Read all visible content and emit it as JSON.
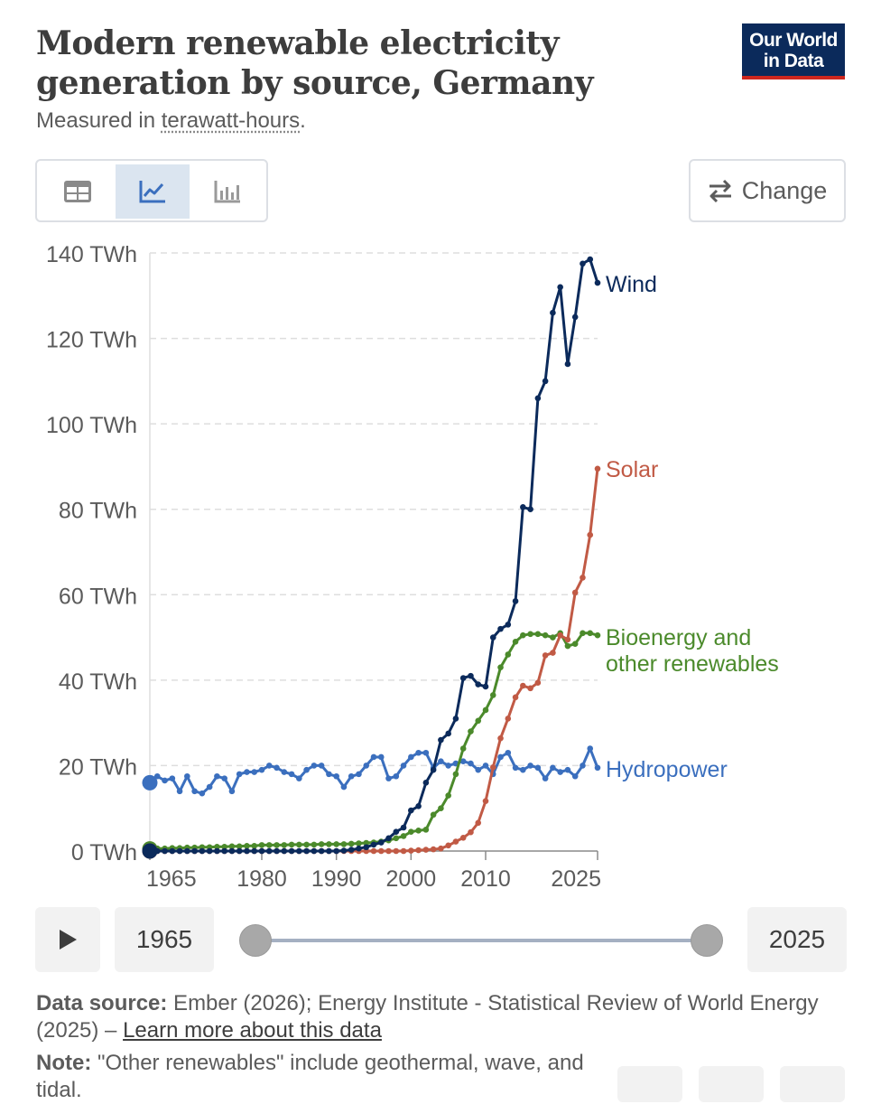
{
  "header": {
    "title": "Modern renewable electricity generation by source, Germany",
    "subtitle_prefix": "Measured in ",
    "subtitle_term": "terawatt-hours",
    "subtitle_suffix": ".",
    "logo_line1": "Our World",
    "logo_line2": "in Data"
  },
  "tabs": [
    {
      "name": "table",
      "icon": "table-icon",
      "active": false
    },
    {
      "name": "chart",
      "icon": "line-chart-icon",
      "active": true
    },
    {
      "name": "map-bars",
      "icon": "bar-chart-icon",
      "active": false
    }
  ],
  "change_label": "Change",
  "timeline": {
    "start_year": "1965",
    "end_year": "2025"
  },
  "footer": {
    "source_label": "Data source:",
    "source_text": " Ember (2026); Energy Institute - Statistical Review of World Energy (2025) – ",
    "source_link": "Learn more about this data",
    "note_label": "Note:",
    "note_text": " \"Other renewables\" include geothermal, wave, and tidal."
  },
  "chart_data": {
    "type": "line",
    "title": "Modern renewable electricity generation by source, Germany",
    "ylabel": "TWh",
    "ylim": [
      0,
      140
    ],
    "y_ticks": [
      0,
      20,
      40,
      60,
      80,
      100,
      120,
      140
    ],
    "y_tick_labels": [
      "0 TWh",
      "20 TWh",
      "40 TWh",
      "60 TWh",
      "80 TWh",
      "100 TWh",
      "120 TWh",
      "140 TWh"
    ],
    "xlim": [
      1965,
      2025
    ],
    "x_ticks": [
      1965,
      1980,
      1990,
      2000,
      2010,
      2025
    ],
    "x_tick_labels": [
      "1965",
      "1980",
      "1990",
      "2000",
      "2010",
      "2025"
    ],
    "x": [
      1965,
      1966,
      1967,
      1968,
      1969,
      1970,
      1971,
      1972,
      1973,
      1974,
      1975,
      1976,
      1977,
      1978,
      1979,
      1980,
      1981,
      1982,
      1983,
      1984,
      1985,
      1986,
      1987,
      1988,
      1989,
      1990,
      1991,
      1992,
      1993,
      1994,
      1995,
      1996,
      1997,
      1998,
      1999,
      2000,
      2001,
      2002,
      2003,
      2004,
      2005,
      2006,
      2007,
      2008,
      2009,
      2010,
      2011,
      2012,
      2013,
      2014,
      2015,
      2016,
      2017,
      2018,
      2019,
      2020,
      2021,
      2022,
      2023,
      2024,
      2025
    ],
    "series": [
      {
        "name": "Wind",
        "label": "Wind",
        "color": "#0b2a5b",
        "values": [
          0,
          0,
          0,
          0,
          0,
          0,
          0,
          0,
          0,
          0,
          0,
          0,
          0,
          0,
          0,
          0,
          0,
          0,
          0,
          0,
          0,
          0,
          0,
          0,
          0,
          0,
          0.1,
          0.3,
          0.6,
          0.9,
          1.5,
          2.0,
          3.0,
          4.5,
          5.5,
          9.5,
          10.5,
          16,
          19,
          26,
          27.5,
          31,
          40.5,
          41,
          39,
          38.5,
          50,
          52,
          53,
          58.5,
          80.5,
          80,
          106,
          110,
          126,
          132,
          114,
          125,
          137.5,
          138.5,
          133
        ]
      },
      {
        "name": "Solar",
        "label": "Solar",
        "color": "#c15a45",
        "values": [
          0,
          0,
          0,
          0,
          0,
          0,
          0,
          0,
          0,
          0,
          0,
          0,
          0,
          0,
          0,
          0,
          0,
          0,
          0,
          0,
          0,
          0,
          0,
          0,
          0,
          0,
          0,
          0,
          0,
          0,
          0,
          0,
          0,
          0,
          0,
          0.1,
          0.2,
          0.3,
          0.4,
          0.6,
          1.3,
          2.2,
          3.1,
          4.4,
          6.6,
          11.7,
          19.6,
          26.4,
          31,
          36,
          38.7,
          38.1,
          39.4,
          45.8,
          46.4,
          50.5,
          49.5,
          60.5,
          64,
          74,
          89.5
        ]
      },
      {
        "name": "Bioenergy and other renewables",
        "label_line1": "Bioenergy and",
        "label_line2": "other renewables",
        "color": "#4b8a2b",
        "values": [
          0.5,
          0.6,
          0.6,
          0.7,
          0.7,
          0.8,
          0.8,
          0.9,
          0.9,
          1.0,
          1.0,
          1.1,
          1.1,
          1.2,
          1.2,
          1.4,
          1.4,
          1.4,
          1.4,
          1.5,
          1.5,
          1.5,
          1.5,
          1.6,
          1.6,
          1.6,
          1.6,
          1.7,
          1.8,
          1.9,
          2.0,
          2.2,
          2.5,
          3.0,
          3.5,
          4.5,
          4.8,
          5.0,
          8.5,
          10,
          13,
          18,
          24,
          28,
          30.5,
          33,
          36.5,
          43,
          46,
          49,
          50.5,
          50.8,
          50.8,
          50.5,
          50,
          51,
          48,
          48.5,
          51,
          51,
          50.5
        ]
      },
      {
        "name": "Hydropower",
        "label": "Hydropower",
        "color": "#3b6fbe",
        "values": [
          16,
          17.5,
          16.5,
          17,
          14,
          17.5,
          14,
          13.5,
          15,
          17.5,
          17,
          14,
          18,
          18.5,
          18.5,
          19,
          20,
          19.5,
          18.5,
          18,
          17,
          19,
          20,
          20,
          18,
          17.5,
          15,
          17.5,
          18,
          20,
          22,
          22,
          17,
          17.5,
          20,
          22,
          23,
          23,
          19.5,
          21,
          20,
          20.5,
          21,
          20.5,
          19,
          20,
          18,
          22,
          23,
          19.5,
          19,
          20,
          19.5,
          17,
          19.5,
          18.5,
          19,
          17.5,
          20,
          24,
          19.5
        ]
      }
    ]
  }
}
